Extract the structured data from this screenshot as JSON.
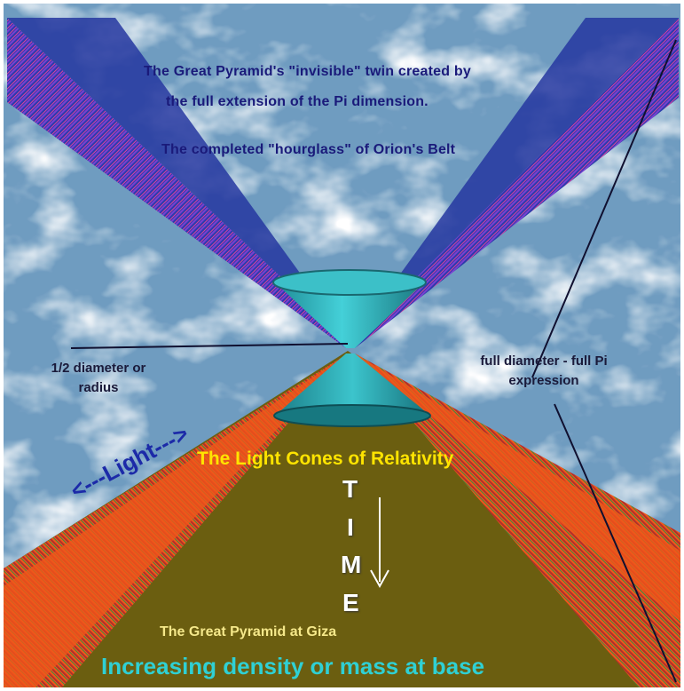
{
  "colors": {
    "sky": "#6f9cc0",
    "cloud": "#f2f6fa",
    "ground": "#6b5e10",
    "beam_blue": "#2e3fb0",
    "beam_orange": "#f0561a",
    "cone": "#2aaeb8",
    "caption_yellow": "#ffe400",
    "base_caption": "#2fd0d4"
  },
  "text": {
    "twin_line1": "The Great Pyramid's \"invisible\" twin created by",
    "twin_line2": "the full extension of the Pi dimension.",
    "hourglass": "The completed \"hourglass\" of Orion's Belt",
    "radius_line1": "1/2 diameter or",
    "radius_line2": "radius",
    "fulldiam_line1": "full diameter - full Pi",
    "fulldiam_line2": "expression",
    "light": "<---Light--->",
    "light_cones": "The Light Cones of Relativity",
    "time": [
      "T",
      "I",
      "M",
      "E"
    ],
    "pyramid": "The Great Pyramid at Giza",
    "base_caption": "Increasing density or mass at base"
  }
}
